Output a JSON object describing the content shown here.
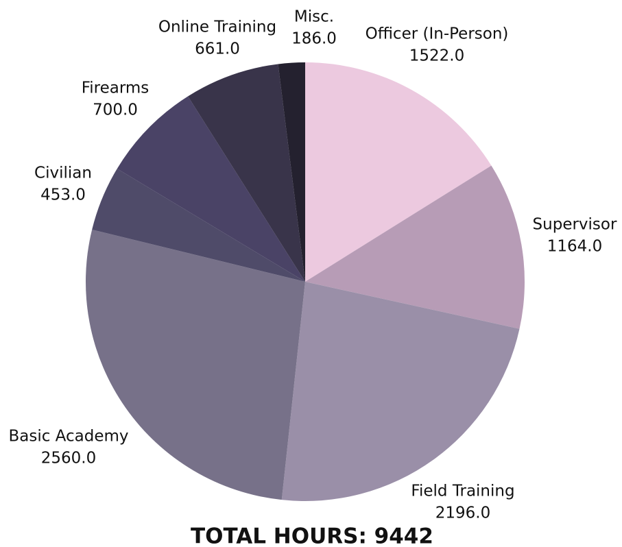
{
  "chart_data": {
    "type": "pie",
    "title": "TOTAL HOURS: 9442",
    "categories": [
      "Officer (In-Person)",
      "Supervisor",
      "Field Training",
      "Basic Academy",
      "Civilian",
      "Firearms",
      "Online Training",
      "Misc."
    ],
    "values": [
      1522,
      1164,
      2196,
      2560,
      453,
      700,
      661,
      186
    ],
    "value_labels": [
      "1522.0",
      "1164.0",
      "2196.0",
      "2560.0",
      "453.0",
      "700.0",
      "661.0",
      "186.0"
    ],
    "colors": [
      "#ecc9df",
      "#b79cb6",
      "#9a8fa8",
      "#777189",
      "#4f4b69",
      "#4a4366",
      "#39344a",
      "#24212f"
    ]
  }
}
